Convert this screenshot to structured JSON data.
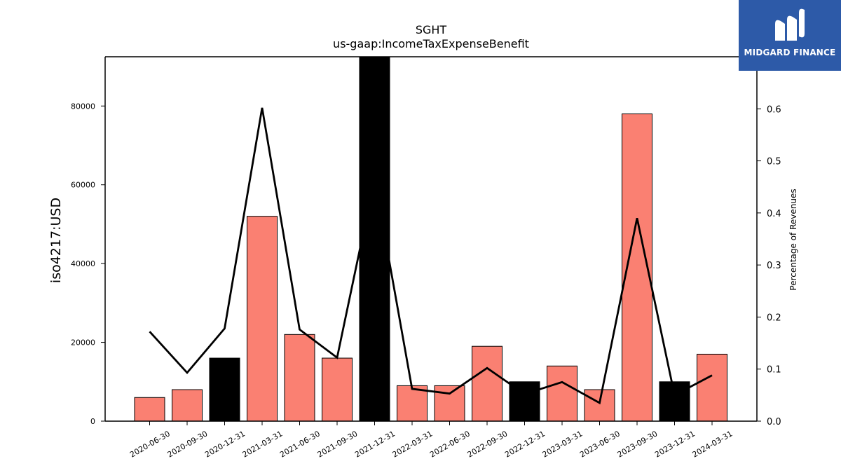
{
  "chart_data": {
    "type": "bar",
    "title": "SGHT",
    "subtitle": "us-gaap:IncomeTaxExpenseBenefit",
    "ylabel": "iso4217:USD",
    "y2label": "Percentage of Revenues",
    "categories": [
      "2020-06-30",
      "2020-09-30",
      "2020-12-31",
      "2021-03-31",
      "2021-06-30",
      "2021-09-30",
      "2021-12-31",
      "2022-03-31",
      "2022-06-30",
      "2022-09-30",
      "2022-12-31",
      "2023-03-31",
      "2023-06-30",
      "2023-09-30",
      "2023-12-31",
      "2024-03-31"
    ],
    "values": [
      6000,
      8000,
      16000,
      52000,
      22000,
      16000,
      92500,
      9000,
      9000,
      19000,
      10000,
      14000,
      8000,
      78000,
      10000,
      17000
    ],
    "bar_colors": [
      "#fa8072",
      "#fa8072",
      "#000000",
      "#fa8072",
      "#fa8072",
      "#fa8072",
      "#000000",
      "#fa8072",
      "#fa8072",
      "#fa8072",
      "#000000",
      "#fa8072",
      "#fa8072",
      "#fa8072",
      "#000000",
      "#fa8072"
    ],
    "line_series": {
      "values": [
        0.172,
        0.093,
        0.178,
        0.602,
        0.176,
        0.122,
        0.465,
        0.062,
        0.053,
        0.102,
        0.052,
        0.075,
        0.035,
        0.39,
        0.05,
        0.088
      ],
      "color": "#000000"
    },
    "ylim": [
      0,
      92500
    ],
    "y2lim": [
      0,
      0.7
    ],
    "yticks": [
      0,
      20000,
      40000,
      60000,
      80000
    ],
    "y2ticks": [
      "0.0",
      "0.1",
      "0.2",
      "0.3",
      "0.4",
      "0.5",
      "0.6"
    ],
    "grid": false
  },
  "logo": {
    "text": "MIDGARD FINANCE",
    "background": "#2d5aa8"
  }
}
